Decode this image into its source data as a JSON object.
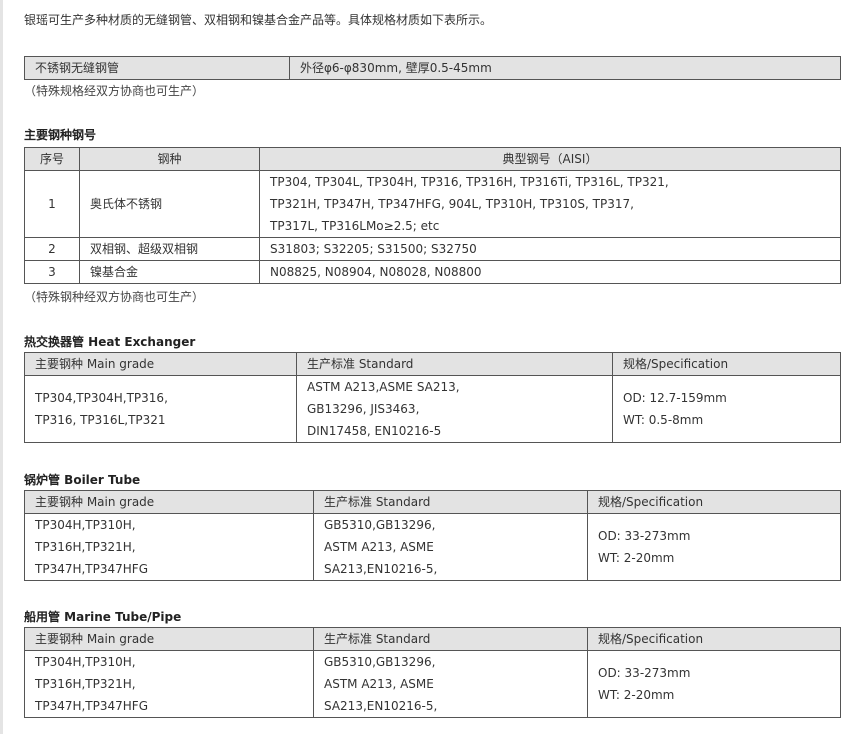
{
  "intro": "银瑶可生产多种材质的无缝钢管、双相钢和镍基合金产品等。具体规格材质如下表所示。",
  "summary": {
    "product": "不锈钢无缝钢管",
    "spec": "外径φ6-φ830mm, 壁厚0.5-45mm",
    "note": "（特殊规格经双方协商也可生产）"
  },
  "grades": {
    "title": "主要钢种钢号",
    "headers": [
      "序号",
      "钢种",
      "典型钢号（AISI）"
    ],
    "rows": [
      {
        "no": "1",
        "type": "奥氏体不锈钢",
        "lines": [
          "TP304, TP304L, TP304H, TP316, TP316H, TP316Ti, TP316L, TP321,",
          "TP321H, TP347H, TP347HFG, 904L, TP310H, TP310S, TP317,",
          "TP317L, TP316LMo≥2.5; etc"
        ]
      },
      {
        "no": "2",
        "type": "双相钢、超级双相钢",
        "lines": [
          "S31803; S32205; S31500; S32750"
        ]
      },
      {
        "no": "3",
        "type": "镍基合金",
        "lines": [
          "N08825, N08904, N08028, N08800"
        ]
      }
    ],
    "note": "（特殊钢种经双方协商也可生产）"
  },
  "heat": {
    "title": "热交换器管 Heat Exchanger",
    "headers": [
      "主要钢种 Main grade",
      "生产标准 Standard",
      "规格/Specification"
    ],
    "grade": [
      "TP304,TP304H,TP316,",
      "TP316, TP316L,TP321"
    ],
    "standard": [
      "ASTM A213,ASME SA213,",
      "GB13296, JIS3463,",
      "DIN17458, EN10216-5"
    ],
    "spec": [
      "OD: 12.7-159mm",
      "WT: 0.5-8mm"
    ]
  },
  "boiler": {
    "title": "锅炉管 Boiler Tube",
    "headers": [
      "主要钢种 Main grade",
      "生产标准 Standard",
      "规格/Specification"
    ],
    "grade": [
      "TP304H,TP310H,",
      "TP316H,TP321H,",
      "TP347H,TP347HFG"
    ],
    "standard": [
      "GB5310,GB13296,",
      "ASTM A213, ASME",
      "SA213,EN10216-5,"
    ],
    "spec": [
      "OD: 33-273mm",
      "WT: 2-20mm"
    ]
  },
  "marine": {
    "title": "船用管 Marine Tube/Pipe",
    "headers": [
      "主要钢种 Main grade",
      "生产标准 Standard",
      "规格/Specification"
    ],
    "grade": [
      "TP304H,TP310H,",
      "TP316H,TP321H,",
      "TP347H,TP347HFG"
    ],
    "standard": [
      "GB5310,GB13296,",
      "ASTM A213, ASME",
      "SA213,EN10216-5,"
    ],
    "spec": [
      "OD: 33-273mm",
      "WT: 2-20mm"
    ]
  }
}
